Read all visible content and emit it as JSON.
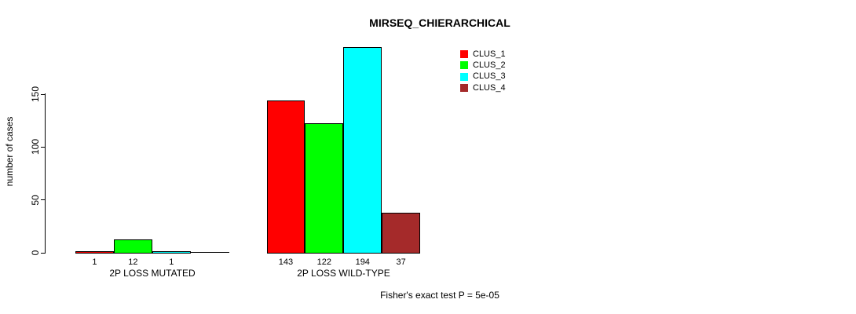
{
  "chart_data": {
    "type": "bar",
    "title": "MIRSEQ_CHIERARCHICAL",
    "ylabel": "number of cases",
    "xlabel": "",
    "categories": [
      "2P LOSS MUTATED",
      "2P LOSS WILD-TYPE"
    ],
    "series": [
      {
        "name": "CLUS_1",
        "color": "#FF0000",
        "values": [
          1,
          143
        ]
      },
      {
        "name": "CLUS_2",
        "color": "#00FF00",
        "values": [
          12,
          122
        ]
      },
      {
        "name": "CLUS_3",
        "color": "#00FFFF",
        "values": [
          1,
          194
        ]
      },
      {
        "name": "CLUS_4",
        "color": "#A52A2A",
        "values": [
          0,
          37
        ]
      }
    ],
    "bar_value_labels": [
      [
        "1",
        "12",
        "1",
        ""
      ],
      [
        "143",
        "122",
        "194",
        "37"
      ]
    ],
    "yticks": [
      0,
      50,
      100,
      150
    ],
    "ylim": [
      0,
      195
    ],
    "grid": false,
    "legend_position": "top-right-inside",
    "annotation": "Fisher's exact test P = 5e-05"
  }
}
